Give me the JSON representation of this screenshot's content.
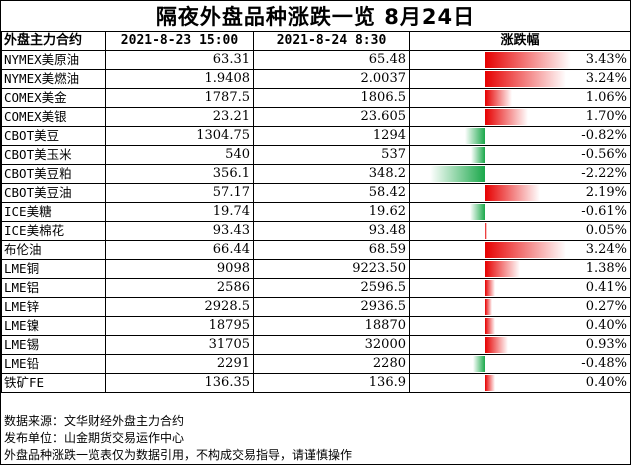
{
  "title": "隔夜外盘品种涨跌一览  8月24日",
  "headers": [
    "外盘主力合约",
    "2021-8-23 15:00",
    "2021-8-24 8:30",
    "涨跌幅"
  ],
  "rows": [
    {
      "name": "NYMEX美原油",
      "prev": "63.31",
      "curr": "65.48",
      "change": "3.43%",
      "change_value": 3.43
    },
    {
      "name": "NYMEX美燃油",
      "prev": "1.9408",
      "curr": "2.0037",
      "change": "3.24%",
      "change_value": 3.24
    },
    {
      "name": "COMEX美金",
      "prev": "1787.5",
      "curr": "1806.5",
      "change": "1.06%",
      "change_value": 1.06
    },
    {
      "name": "COMEX美银",
      "prev": "23.21",
      "curr": "23.605",
      "change": "1.70%",
      "change_value": 1.7
    },
    {
      "name": "CBOT美豆",
      "prev": "1304.75",
      "curr": "1294",
      "change": "-0.82%",
      "change_value": -0.82
    },
    {
      "name": "CBOT美玉米",
      "prev": "540",
      "curr": "537",
      "change": "-0.56%",
      "change_value": -0.56
    },
    {
      "name": "CBOT美豆粕",
      "prev": "356.1",
      "curr": "348.2",
      "change": "-2.22%",
      "change_value": -2.22
    },
    {
      "name": "CBOT美豆油",
      "prev": "57.17",
      "curr": "58.42",
      "change": "2.19%",
      "change_value": 2.19
    },
    {
      "name": "ICE美糖",
      "prev": "19.74",
      "curr": "19.62",
      "change": "-0.61%",
      "change_value": -0.61
    },
    {
      "name": "ICE美棉花",
      "prev": "93.43",
      "curr": "93.48",
      "change": "0.05%",
      "change_value": 0.05
    },
    {
      "name": "布伦油",
      "prev": "66.44",
      "curr": "68.59",
      "change": "3.24%",
      "change_value": 3.24
    },
    {
      "name": "LME铜",
      "prev": "9098",
      "curr": "9223.50",
      "change": "1.38%",
      "change_value": 1.38
    },
    {
      "name": "LME铝",
      "prev": "2586",
      "curr": "2596.5",
      "change": "0.41%",
      "change_value": 0.41
    },
    {
      "name": "LME锌",
      "prev": "2928.5",
      "curr": "2936.5",
      "change": "0.27%",
      "change_value": 0.27
    },
    {
      "name": "LME镍",
      "prev": "18795",
      "curr": "18870",
      "change": "0.40%",
      "change_value": 0.4
    },
    {
      "name": "LME锡",
      "prev": "31705",
      "curr": "32000",
      "change": "0.93%",
      "change_value": 0.93
    },
    {
      "name": "LME铅",
      "prev": "2291",
      "curr": "2280",
      "change": "-0.48%",
      "change_value": -0.48
    },
    {
      "name": "铁矿FE",
      "prev": "136.35",
      "curr": "136.9",
      "change": "0.40%",
      "change_value": 0.4
    }
  ],
  "notes": [
    "数据来源：文华财经外盘主力合约",
    "发布单位：山金期货交易运作中心",
    "外盘品种涨跌一览表仅为数据引用，不构成交易指导，请谨慎操作"
  ],
  "colors": {
    "up_bar": "#e60000",
    "down_bar": "#1aa84a"
  }
}
